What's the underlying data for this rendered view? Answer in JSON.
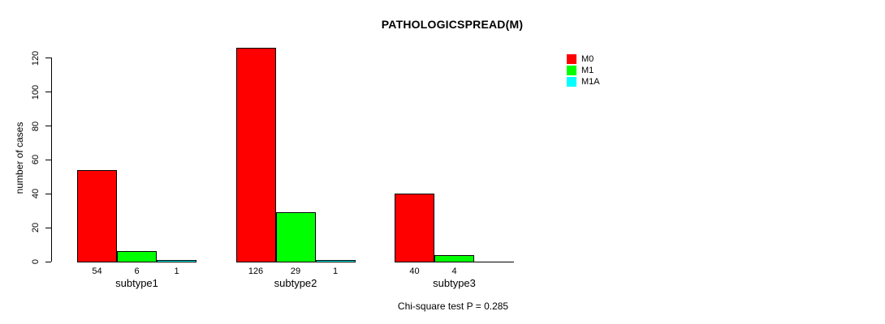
{
  "chart_data": {
    "type": "bar",
    "title": "PATHOLOGICSPREAD(M)",
    "ylabel": "number of cases",
    "xlabel": "",
    "categories": [
      "subtype1",
      "subtype2",
      "subtype3"
    ],
    "series": [
      {
        "name": "M0",
        "color": "#ff0000",
        "values": [
          54,
          126,
          40
        ]
      },
      {
        "name": "M1",
        "color": "#00ff00",
        "values": [
          6,
          29,
          4
        ]
      },
      {
        "name": "M1A",
        "color": "#00ffff",
        "values": [
          1,
          1,
          0
        ]
      }
    ],
    "bar_count_labels": [
      [
        "54",
        "6",
        "1"
      ],
      [
        "126",
        "29",
        "1"
      ],
      [
        "40",
        "4",
        ""
      ]
    ],
    "y_ticks": [
      0,
      20,
      40,
      60,
      80,
      100,
      120
    ],
    "ylim": [
      0,
      126
    ],
    "grid": false,
    "legend_position": "topright",
    "annotation": "Chi-square test P = 0.285"
  }
}
